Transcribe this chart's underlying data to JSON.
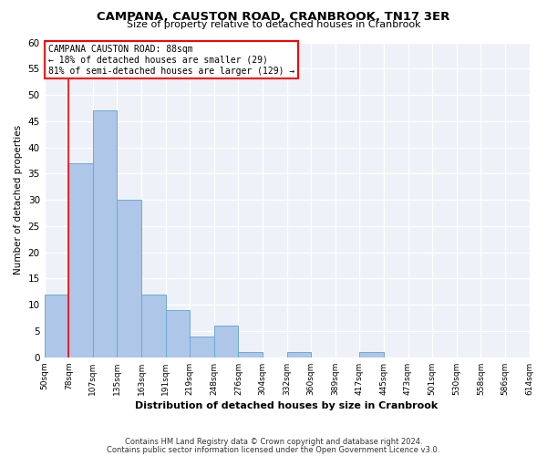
{
  "title": "CAMPANA, CAUSTON ROAD, CRANBROOK, TN17 3ER",
  "subtitle": "Size of property relative to detached houses in Cranbrook",
  "xlabel": "Distribution of detached houses by size in Cranbrook",
  "ylabel": "Number of detached properties",
  "bar_color": "#aec6e8",
  "bar_edge_color": "#6aaad4",
  "background_color": "#eef2f8",
  "grid_color": "#ffffff",
  "bin_labels": [
    "50sqm",
    "78sqm",
    "107sqm",
    "135sqm",
    "163sqm",
    "191sqm",
    "219sqm",
    "248sqm",
    "276sqm",
    "304sqm",
    "332sqm",
    "360sqm",
    "389sqm",
    "417sqm",
    "445sqm",
    "473sqm",
    "501sqm",
    "530sqm",
    "558sqm",
    "586sqm",
    "614sqm"
  ],
  "bar_values": [
    12,
    37,
    47,
    30,
    12,
    9,
    4,
    6,
    1,
    0,
    1,
    0,
    0,
    1,
    0,
    0,
    0,
    0,
    0,
    0
  ],
  "ylim": [
    0,
    60
  ],
  "yticks": [
    0,
    5,
    10,
    15,
    20,
    25,
    30,
    35,
    40,
    45,
    50,
    55,
    60
  ],
  "red_line_x": 1,
  "annotation_title": "CAMPANA CAUSTON ROAD: 88sqm",
  "annotation_line1": "← 18% of detached houses are smaller (29)",
  "annotation_line2": "81% of semi-detached houses are larger (129) →",
  "footer_line1": "Contains HM Land Registry data © Crown copyright and database right 2024.",
  "footer_line2": "Contains public sector information licensed under the Open Government Licence v3.0."
}
